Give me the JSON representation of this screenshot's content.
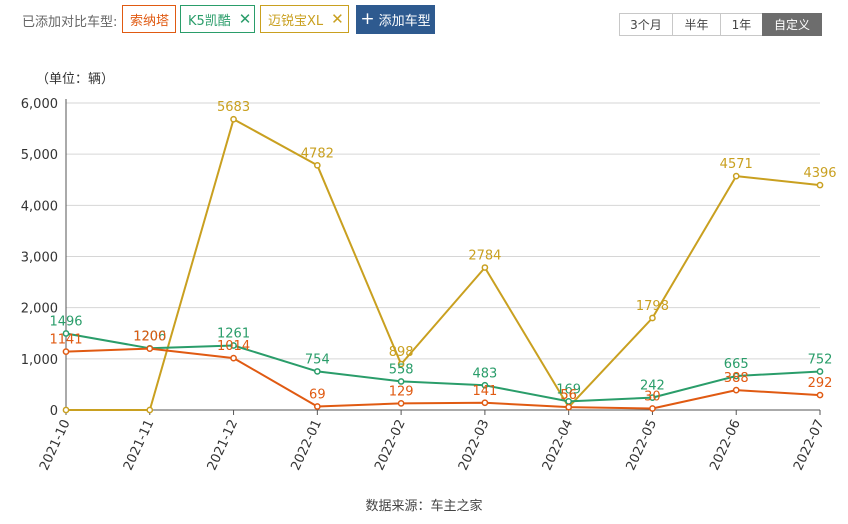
{
  "toolbar": {
    "added_label": "已添加对比车型:",
    "add_button_label": "添加车型",
    "models": [
      {
        "name": "索纳塔",
        "color": "#e05a12",
        "removable": false
      },
      {
        "name": "K5凯酷",
        "color": "#2a9d6a",
        "removable": true
      },
      {
        "name": "迈锐宝XL",
        "color": "#c9a020",
        "removable": true
      }
    ],
    "ranges": [
      "3个月",
      "半年",
      "1年",
      "自定义"
    ],
    "active_range": 3
  },
  "chart_data": {
    "type": "line",
    "unit_label": "（单位：辆）",
    "categories": [
      "2021-10",
      "2021-11",
      "2021-12",
      "2022-01",
      "2022-02",
      "2022-03",
      "2022-04",
      "2022-05",
      "2022-06",
      "2022-07"
    ],
    "ylim": [
      0,
      6000
    ],
    "yticks": [
      0,
      1000,
      2000,
      3000,
      4000,
      5000,
      6000
    ],
    "ytick_labels": [
      "0",
      "1,000",
      "2,000",
      "3,000",
      "4,000",
      "5,000",
      "6,000"
    ],
    "grid": true,
    "series": [
      {
        "name": "迈锐宝XL",
        "color": "#c9a020",
        "values": [
          0,
          0,
          5683,
          4782,
          898,
          2784,
          56,
          1798,
          4571,
          4396
        ],
        "labels": [
          "",
          "",
          "5683",
          "4782",
          "898",
          "2784",
          "56",
          "1798",
          "4571",
          "4396"
        ]
      },
      {
        "name": "K5凯酷",
        "color": "#2a9d6a",
        "values": [
          1496,
          1206,
          1261,
          754,
          558,
          483,
          169,
          242,
          665,
          752
        ],
        "labels": [
          "1496",
          "1206",
          "1261",
          "754",
          "558",
          "483",
          "169",
          "242",
          "665",
          "752"
        ]
      },
      {
        "name": "索纳塔",
        "color": "#e05a12",
        "values": [
          1141,
          1200,
          1014,
          69,
          129,
          141,
          56,
          30,
          388,
          292
        ],
        "labels": [
          "1141",
          "1200",
          "1014",
          "69",
          "129",
          "141",
          "56",
          "30",
          "388",
          "292"
        ]
      }
    ]
  },
  "footer": {
    "source": "数据来源：车主之家"
  }
}
